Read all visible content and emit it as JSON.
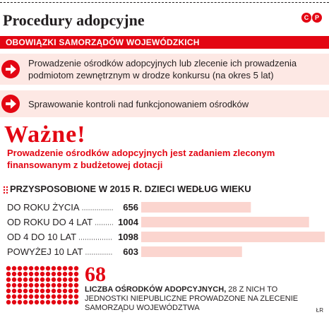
{
  "header": {
    "title": "Procedury adopcyjne",
    "logo_letters": [
      "C",
      "P"
    ]
  },
  "section": {
    "label": "OBOWIĄZKI SAMORZĄDÓW WOJEWÓDZKICH"
  },
  "duties": [
    {
      "text": "Prowadzenie ośrodków adopcyjnych lub zlecenie ich prowadzenia podmiotom zewnętrznym w drodze konkursu (na okres 5 lat)"
    },
    {
      "text": "Sprawowanie kontroli nad funkcjonowaniem ośrodków"
    }
  ],
  "important": {
    "heading": "Ważne!",
    "text": "Prowadzenie ośrodków adopcyjnych jest zadaniem zleconym finansowanym z budżetowej dotacji"
  },
  "chart_data": {
    "type": "bar",
    "title": "Przysposobione w 2015 r. dzieci według wieku",
    "categories": [
      "DO ROKU ŻYCIA",
      "OD ROKU DO 4 LAT",
      "OD 4 DO 10 LAT",
      "POWYŻEJ 10 LAT"
    ],
    "values": [
      656,
      1004,
      1098,
      603
    ],
    "bar_color": "#fbd5cf"
  },
  "count": {
    "number": "68",
    "label_bold": "Liczba ośrodków adopcyjnych,",
    "label_rest": " 28 z nich to jednostki niepubliczne prowadzone na zlecenie samorządu województwa",
    "dot_color": "#e30613"
  },
  "credit": "ŁR",
  "colors": {
    "accent": "#e30613",
    "light": "#fde8e4"
  }
}
